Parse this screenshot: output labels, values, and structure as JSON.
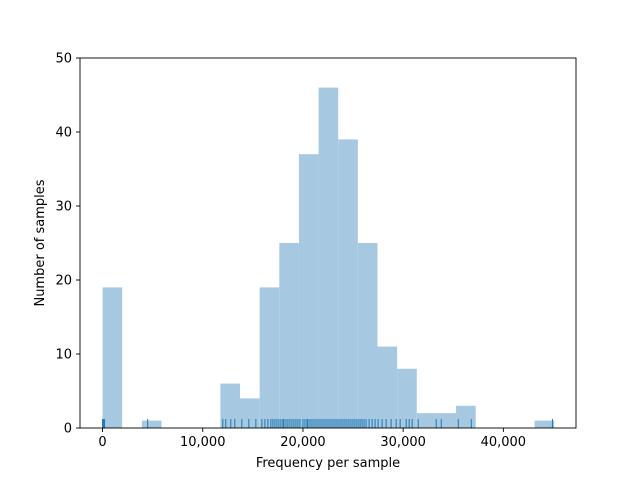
{
  "chart_data": {
    "type": "bar",
    "title": "",
    "xlabel": "Frequency per sample",
    "ylabel": "Number of samples",
    "xlim": [
      -2250,
      47250
    ],
    "ylim": [
      0,
      50
    ],
    "grid": false,
    "legend": "none",
    "bin_width": 1960,
    "bins": [
      {
        "start": 0,
        "count": 19
      },
      {
        "start": 1960,
        "count": 0
      },
      {
        "start": 3920,
        "count": 1
      },
      {
        "start": 5880,
        "count": 0
      },
      {
        "start": 7840,
        "count": 0
      },
      {
        "start": 9800,
        "count": 0
      },
      {
        "start": 11760,
        "count": 6
      },
      {
        "start": 13720,
        "count": 4
      },
      {
        "start": 15680,
        "count": 19
      },
      {
        "start": 17640,
        "count": 25
      },
      {
        "start": 19600,
        "count": 37
      },
      {
        "start": 21560,
        "count": 46
      },
      {
        "start": 23520,
        "count": 39
      },
      {
        "start": 25480,
        "count": 25
      },
      {
        "start": 27440,
        "count": 11
      },
      {
        "start": 29400,
        "count": 8
      },
      {
        "start": 31360,
        "count": 2
      },
      {
        "start": 33320,
        "count": 2
      },
      {
        "start": 35280,
        "count": 3
      },
      {
        "start": 37240,
        "count": 0
      },
      {
        "start": 39200,
        "count": 0
      },
      {
        "start": 41160,
        "count": 0
      },
      {
        "start": 43120,
        "count": 1
      }
    ],
    "x_ticks": [
      {
        "value": 0,
        "label": "0"
      },
      {
        "value": 10000,
        "label": "10,000"
      },
      {
        "value": 20000,
        "label": "20,000"
      },
      {
        "value": 30000,
        "label": "30,000"
      },
      {
        "value": 40000,
        "label": "40,000"
      }
    ],
    "y_ticks": [
      {
        "value": 0,
        "label": "0"
      },
      {
        "value": 10,
        "label": "10"
      },
      {
        "value": 20,
        "label": "20"
      },
      {
        "value": 30,
        "label": "30"
      },
      {
        "value": 40,
        "label": "40"
      },
      {
        "value": 50,
        "label": "50"
      }
    ],
    "rug_values": [
      0,
      100,
      200,
      4500,
      12000,
      12300,
      12800,
      13200,
      13900,
      14600,
      15300,
      15900,
      16200,
      16500,
      16800,
      17000,
      17200,
      17400,
      17600,
      17800,
      18000,
      18100,
      18300,
      18500,
      18700,
      18900,
      19100,
      19300,
      19500,
      19700,
      20000,
      20200,
      20400,
      20500,
      20700,
      20900,
      21100,
      21300,
      21500,
      21700,
      21900,
      22100,
      22300,
      22500,
      22700,
      22900,
      23100,
      23300,
      23500,
      23700,
      23900,
      24100,
      24300,
      24500,
      24700,
      24900,
      25100,
      25300,
      25500,
      25700,
      25900,
      26100,
      26300,
      26600,
      26900,
      27200,
      27500,
      27900,
      28300,
      28800,
      29300,
      29700,
      30300,
      30600,
      30900,
      31500,
      33300,
      33800,
      35500,
      36800,
      44900
    ],
    "colors": {
      "bar_fill": "#a6c8e0",
      "rug": "#1f77b4",
      "axes": "#000000"
    }
  }
}
